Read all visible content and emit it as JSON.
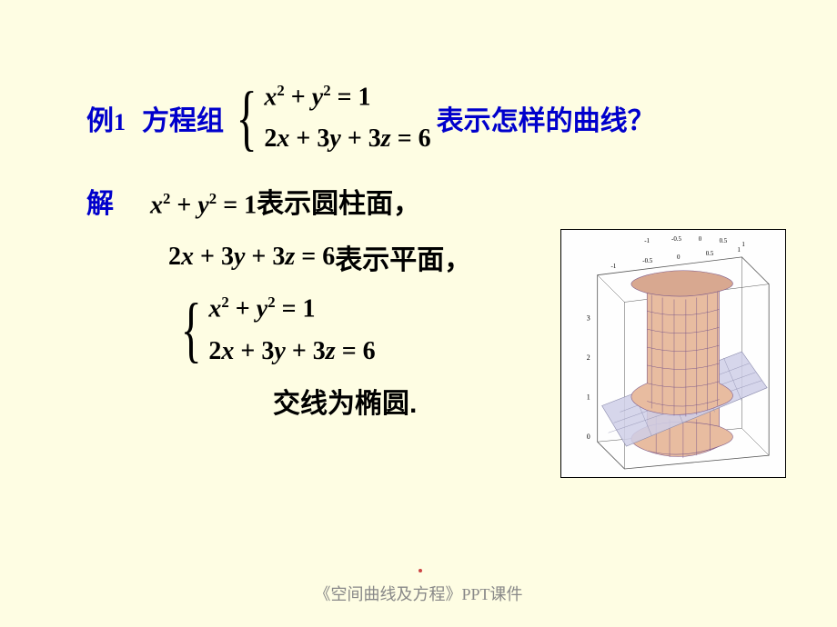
{
  "example": {
    "label_prefix": "例",
    "label_num": "1",
    "prompt_left": "方程组",
    "eq_top": "x<span class='sup'>2</span> <span class='n'>+</span> y<span class='sup'>2</span> <span class='n'>= 1</span>",
    "eq_bot": "<span class='n'>2</span>x <span class='n'>+ 3</span>y <span class='n'>+ 3</span>z <span class='n'>= 6</span>",
    "prompt_right": "表示怎样的曲线？"
  },
  "solution": {
    "label": "解",
    "line_a_eq": "x<span class='sup'>2</span> <span class='n'>+</span> y<span class='sup'>2</span> <span class='n'>= 1</span>",
    "line_a_txt": " 表示圆柱面，",
    "line_b_eq": "<span class='n'>2</span>x <span class='n'>+ 3</span>y <span class='n'>+ 3</span>z <span class='n'>= 6</span>",
    "line_b_txt": "  表示平面，",
    "sys_top": "x<span class='sup'>2</span> <span class='n'>+</span> y<span class='sup'>2</span> <span class='n'>= 1</span>",
    "sys_bot": "<span class='n'>2</span>x <span class='n'>+ 3</span>y <span class='n'>+ 3</span>z <span class='n'>= 6</span>",
    "result": "交线为椭圆."
  },
  "figure": {
    "background": "#ffffff",
    "grid_color": "#999999",
    "box_color": "#555555",
    "cylinder_fill": "#e8bca0",
    "cylinder_mesh": "#7d5a8a",
    "plane_fill": "#cfcfe8",
    "plane_mesh": "#8888aa",
    "axis_labels_top": [
      "-1",
      "-0.5",
      "0",
      "0.5",
      "1"
    ],
    "axis_labels_top2": [
      "1",
      "0.5",
      "0",
      "-0.5",
      "-1"
    ],
    "z_labels": [
      "0",
      "1",
      "2",
      "3"
    ],
    "label_fontsize": 7,
    "label_color": "#000000"
  },
  "footer": "《空间曲线及方程》PPT课件"
}
